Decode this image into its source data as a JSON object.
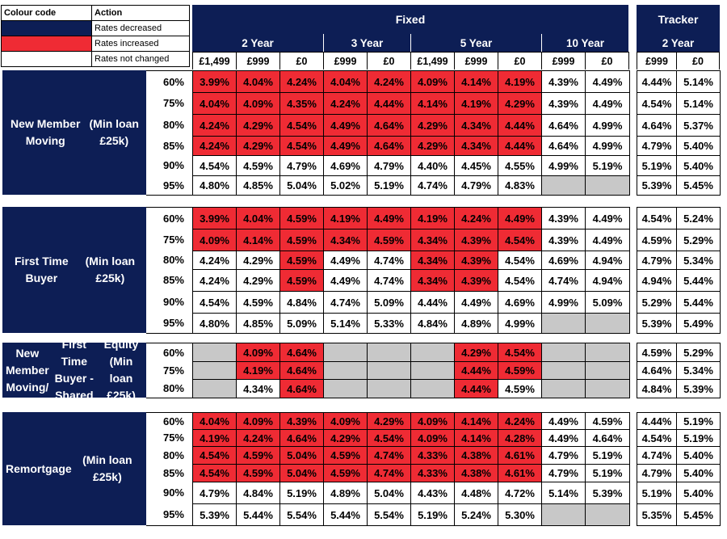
{
  "legend": {
    "col1_header": "Colour code",
    "col2_header": "Action",
    "rows": [
      {
        "color": "#0d1e55",
        "label": "Rates decreased"
      },
      {
        "color": "#ef2b34",
        "label": "Rates increased"
      },
      {
        "color": "#ffffff",
        "label": "Rates not changed"
      }
    ]
  },
  "header": {
    "fixed_label": "Fixed",
    "tracker_label": "Tracker",
    "fixed_groups": [
      {
        "term": "2 Year",
        "options": [
          "£1,499",
          "£999",
          "£0"
        ]
      },
      {
        "term": "3 Year",
        "options": [
          "£999",
          "£0"
        ]
      },
      {
        "term": "5 Year",
        "options": [
          "£1,499",
          "£999",
          "£0"
        ]
      },
      {
        "term": "10 Year",
        "options": [
          "£999",
          "£0"
        ]
      }
    ],
    "tracker_group": {
      "term": "2 Year",
      "options": [
        "£999",
        "£0"
      ]
    }
  },
  "status_colors": {
    "inc": "#ef2b34",
    "nc": "#ffffff",
    "na": "#c8c8c8"
  },
  "sections": [
    {
      "label": "New Member Moving\n(Min loan £25k)",
      "rows": [
        {
          "ltv": "60%",
          "fixed": [
            [
              "3.99%",
              "inc"
            ],
            [
              "4.04%",
              "inc"
            ],
            [
              "4.24%",
              "inc"
            ],
            [
              "4.04%",
              "inc"
            ],
            [
              "4.24%",
              "inc"
            ],
            [
              "4.09%",
              "inc"
            ],
            [
              "4.14%",
              "inc"
            ],
            [
              "4.19%",
              "inc"
            ],
            [
              "4.39%",
              "nc"
            ],
            [
              "4.49%",
              "nc"
            ]
          ],
          "tracker": [
            "4.44%",
            "5.14%"
          ]
        },
        {
          "ltv": "75%",
          "fixed": [
            [
              "4.04%",
              "inc"
            ],
            [
              "4.09%",
              "inc"
            ],
            [
              "4.35%",
              "inc"
            ],
            [
              "4.24%",
              "inc"
            ],
            [
              "4.44%",
              "inc"
            ],
            [
              "4.14%",
              "inc"
            ],
            [
              "4.19%",
              "inc"
            ],
            [
              "4.29%",
              "inc"
            ],
            [
              "4.39%",
              "nc"
            ],
            [
              "4.49%",
              "nc"
            ]
          ],
          "tracker": [
            "4.54%",
            "5.14%"
          ]
        },
        {
          "ltv": "80%",
          "fixed": [
            [
              "4.24%",
              "inc"
            ],
            [
              "4.29%",
              "inc"
            ],
            [
              "4.54%",
              "inc"
            ],
            [
              "4.49%",
              "inc"
            ],
            [
              "4.64%",
              "inc"
            ],
            [
              "4.29%",
              "inc"
            ],
            [
              "4.34%",
              "inc"
            ],
            [
              "4.44%",
              "inc"
            ],
            [
              "4.64%",
              "nc"
            ],
            [
              "4.99%",
              "nc"
            ]
          ],
          "tracker": [
            "4.64%",
            "5.37%"
          ]
        },
        {
          "ltv": "85%",
          "fixed": [
            [
              "4.24%",
              "inc"
            ],
            [
              "4.29%",
              "inc"
            ],
            [
              "4.54%",
              "inc"
            ],
            [
              "4.49%",
              "inc"
            ],
            [
              "4.64%",
              "inc"
            ],
            [
              "4.29%",
              "inc"
            ],
            [
              "4.34%",
              "inc"
            ],
            [
              "4.44%",
              "inc"
            ],
            [
              "4.64%",
              "nc"
            ],
            [
              "4.99%",
              "nc"
            ]
          ],
          "tracker": [
            "4.79%",
            "5.40%"
          ]
        },
        {
          "ltv": "90%",
          "fixed": [
            [
              "4.54%",
              "nc"
            ],
            [
              "4.59%",
              "nc"
            ],
            [
              "4.79%",
              "nc"
            ],
            [
              "4.69%",
              "nc"
            ],
            [
              "4.79%",
              "nc"
            ],
            [
              "4.40%",
              "nc"
            ],
            [
              "4.45%",
              "nc"
            ],
            [
              "4.55%",
              "nc"
            ],
            [
              "4.99%",
              "nc"
            ],
            [
              "5.19%",
              "nc"
            ]
          ],
          "tracker": [
            "5.19%",
            "5.40%"
          ]
        },
        {
          "ltv": "95%",
          "fixed": [
            [
              "4.80%",
              "nc"
            ],
            [
              "4.85%",
              "nc"
            ],
            [
              "5.04%",
              "nc"
            ],
            [
              "5.02%",
              "nc"
            ],
            [
              "5.19%",
              "nc"
            ],
            [
              "4.74%",
              "nc"
            ],
            [
              "4.79%",
              "nc"
            ],
            [
              "4.83%",
              "nc"
            ],
            [
              "",
              "na"
            ],
            [
              "",
              "na"
            ]
          ],
          "tracker": [
            "5.39%",
            "5.45%"
          ]
        }
      ]
    },
    {
      "label": "First Time Buyer\n(Min loan £25k)",
      "rows": [
        {
          "ltv": "60%",
          "fixed": [
            [
              "3.99%",
              "inc"
            ],
            [
              "4.04%",
              "inc"
            ],
            [
              "4.59%",
              "inc"
            ],
            [
              "4.19%",
              "inc"
            ],
            [
              "4.49%",
              "inc"
            ],
            [
              "4.19%",
              "inc"
            ],
            [
              "4.24%",
              "inc"
            ],
            [
              "4.49%",
              "inc"
            ],
            [
              "4.39%",
              "nc"
            ],
            [
              "4.49%",
              "nc"
            ]
          ],
          "tracker": [
            "4.54%",
            "5.24%"
          ]
        },
        {
          "ltv": "75%",
          "fixed": [
            [
              "4.09%",
              "inc"
            ],
            [
              "4.14%",
              "inc"
            ],
            [
              "4.59%",
              "inc"
            ],
            [
              "4.34%",
              "inc"
            ],
            [
              "4.59%",
              "inc"
            ],
            [
              "4.34%",
              "inc"
            ],
            [
              "4.39%",
              "inc"
            ],
            [
              "4.54%",
              "inc"
            ],
            [
              "4.39%",
              "nc"
            ],
            [
              "4.49%",
              "nc"
            ]
          ],
          "tracker": [
            "4.59%",
            "5.29%"
          ]
        },
        {
          "ltv": "80%",
          "fixed": [
            [
              "4.24%",
              "nc"
            ],
            [
              "4.29%",
              "nc"
            ],
            [
              "4.59%",
              "inc"
            ],
            [
              "4.49%",
              "nc"
            ],
            [
              "4.74%",
              "nc"
            ],
            [
              "4.34%",
              "inc"
            ],
            [
              "4.39%",
              "inc"
            ],
            [
              "4.54%",
              "nc"
            ],
            [
              "4.69%",
              "nc"
            ],
            [
              "4.94%",
              "nc"
            ]
          ],
          "tracker": [
            "4.79%",
            "5.34%"
          ]
        },
        {
          "ltv": "85%",
          "fixed": [
            [
              "4.24%",
              "nc"
            ],
            [
              "4.29%",
              "nc"
            ],
            [
              "4.59%",
              "inc"
            ],
            [
              "4.49%",
              "nc"
            ],
            [
              "4.74%",
              "nc"
            ],
            [
              "4.34%",
              "inc"
            ],
            [
              "4.39%",
              "inc"
            ],
            [
              "4.54%",
              "nc"
            ],
            [
              "4.74%",
              "nc"
            ],
            [
              "4.94%",
              "nc"
            ]
          ],
          "tracker": [
            "4.94%",
            "5.44%"
          ]
        },
        {
          "ltv": "90%",
          "fixed": [
            [
              "4.54%",
              "nc"
            ],
            [
              "4.59%",
              "nc"
            ],
            [
              "4.84%",
              "nc"
            ],
            [
              "4.74%",
              "nc"
            ],
            [
              "5.09%",
              "nc"
            ],
            [
              "4.44%",
              "nc"
            ],
            [
              "4.49%",
              "nc"
            ],
            [
              "4.69%",
              "nc"
            ],
            [
              "4.99%",
              "nc"
            ],
            [
              "5.09%",
              "nc"
            ]
          ],
          "tracker": [
            "5.29%",
            "5.44%"
          ]
        },
        {
          "ltv": "95%",
          "fixed": [
            [
              "4.80%",
              "nc"
            ],
            [
              "4.85%",
              "nc"
            ],
            [
              "5.09%",
              "nc"
            ],
            [
              "5.14%",
              "nc"
            ],
            [
              "5.33%",
              "nc"
            ],
            [
              "4.84%",
              "nc"
            ],
            [
              "4.89%",
              "nc"
            ],
            [
              "4.99%",
              "nc"
            ],
            [
              "",
              "na"
            ],
            [
              "",
              "na"
            ]
          ],
          "tracker": [
            "5.39%",
            "5.49%"
          ]
        }
      ]
    },
    {
      "label": "New Member Moving/\nFirst Time Buyer - Shared\nEquity (Min loan £25k)",
      "rows": [
        {
          "ltv": "60%",
          "fixed": [
            [
              "",
              "na"
            ],
            [
              "4.09%",
              "inc"
            ],
            [
              "4.64%",
              "inc"
            ],
            [
              "",
              "na"
            ],
            [
              "",
              "na"
            ],
            [
              "",
              "na"
            ],
            [
              "4.29%",
              "inc"
            ],
            [
              "4.54%",
              "inc"
            ],
            [
              "",
              "na"
            ],
            [
              "",
              "na"
            ]
          ],
          "tracker": [
            "4.59%",
            "5.29%"
          ]
        },
        {
          "ltv": "75%",
          "fixed": [
            [
              "",
              "na"
            ],
            [
              "4.19%",
              "inc"
            ],
            [
              "4.64%",
              "inc"
            ],
            [
              "",
              "na"
            ],
            [
              "",
              "na"
            ],
            [
              "",
              "na"
            ],
            [
              "4.44%",
              "inc"
            ],
            [
              "4.59%",
              "inc"
            ],
            [
              "",
              "na"
            ],
            [
              "",
              "na"
            ]
          ],
          "tracker": [
            "4.64%",
            "5.34%"
          ]
        },
        {
          "ltv": "80%",
          "fixed": [
            [
              "",
              "na"
            ],
            [
              "4.34%",
              "nc"
            ],
            [
              "4.64%",
              "inc"
            ],
            [
              "",
              "na"
            ],
            [
              "",
              "na"
            ],
            [
              "",
              "na"
            ],
            [
              "4.44%",
              "inc"
            ],
            [
              "4.59%",
              "nc"
            ],
            [
              "",
              "na"
            ],
            [
              "",
              "na"
            ]
          ],
          "tracker": [
            "4.84%",
            "5.39%"
          ]
        }
      ]
    },
    {
      "label": "Remortgage\n(Min loan £25k)",
      "rows": [
        {
          "ltv": "60%",
          "fixed": [
            [
              "4.04%",
              "inc"
            ],
            [
              "4.09%",
              "inc"
            ],
            [
              "4.39%",
              "inc"
            ],
            [
              "4.09%",
              "inc"
            ],
            [
              "4.29%",
              "inc"
            ],
            [
              "4.09%",
              "inc"
            ],
            [
              "4.14%",
              "inc"
            ],
            [
              "4.24%",
              "inc"
            ],
            [
              "4.49%",
              "nc"
            ],
            [
              "4.59%",
              "nc"
            ]
          ],
          "tracker": [
            "4.44%",
            "5.19%"
          ]
        },
        {
          "ltv": "75%",
          "fixed": [
            [
              "4.19%",
              "inc"
            ],
            [
              "4.24%",
              "inc"
            ],
            [
              "4.64%",
              "inc"
            ],
            [
              "4.29%",
              "inc"
            ],
            [
              "4.54%",
              "inc"
            ],
            [
              "4.09%",
              "inc"
            ],
            [
              "4.14%",
              "inc"
            ],
            [
              "4.28%",
              "inc"
            ],
            [
              "4.49%",
              "nc"
            ],
            [
              "4.64%",
              "nc"
            ]
          ],
          "tracker": [
            "4.54%",
            "5.19%"
          ]
        },
        {
          "ltv": "80%",
          "fixed": [
            [
              "4.54%",
              "inc"
            ],
            [
              "4.59%",
              "inc"
            ],
            [
              "5.04%",
              "inc"
            ],
            [
              "4.59%",
              "inc"
            ],
            [
              "4.74%",
              "inc"
            ],
            [
              "4.33%",
              "inc"
            ],
            [
              "4.38%",
              "inc"
            ],
            [
              "4.61%",
              "inc"
            ],
            [
              "4.79%",
              "nc"
            ],
            [
              "5.19%",
              "nc"
            ]
          ],
          "tracker": [
            "4.74%",
            "5.40%"
          ]
        },
        {
          "ltv": "85%",
          "fixed": [
            [
              "4.54%",
              "inc"
            ],
            [
              "4.59%",
              "inc"
            ],
            [
              "5.04%",
              "inc"
            ],
            [
              "4.59%",
              "inc"
            ],
            [
              "4.74%",
              "inc"
            ],
            [
              "4.33%",
              "inc"
            ],
            [
              "4.38%",
              "inc"
            ],
            [
              "4.61%",
              "inc"
            ],
            [
              "4.79%",
              "nc"
            ],
            [
              "5.19%",
              "nc"
            ]
          ],
          "tracker": [
            "4.79%",
            "5.40%"
          ]
        },
        {
          "ltv": "90%",
          "fixed": [
            [
              "4.79%",
              "nc"
            ],
            [
              "4.84%",
              "nc"
            ],
            [
              "5.19%",
              "nc"
            ],
            [
              "4.89%",
              "nc"
            ],
            [
              "5.04%",
              "nc"
            ],
            [
              "4.43%",
              "nc"
            ],
            [
              "4.48%",
              "nc"
            ],
            [
              "4.72%",
              "nc"
            ],
            [
              "5.14%",
              "nc"
            ],
            [
              "5.39%",
              "nc"
            ]
          ],
          "tracker": [
            "5.19%",
            "5.40%"
          ]
        },
        {
          "ltv": "95%",
          "fixed": [
            [
              "5.39%",
              "nc"
            ],
            [
              "5.44%",
              "nc"
            ],
            [
              "5.54%",
              "nc"
            ],
            [
              "5.44%",
              "nc"
            ],
            [
              "5.54%",
              "nc"
            ],
            [
              "5.19%",
              "nc"
            ],
            [
              "5.24%",
              "nc"
            ],
            [
              "5.30%",
              "nc"
            ],
            [
              "",
              "na"
            ],
            [
              "",
              "na"
            ]
          ],
          "tracker": [
            "5.35%",
            "5.45%"
          ]
        }
      ]
    }
  ]
}
